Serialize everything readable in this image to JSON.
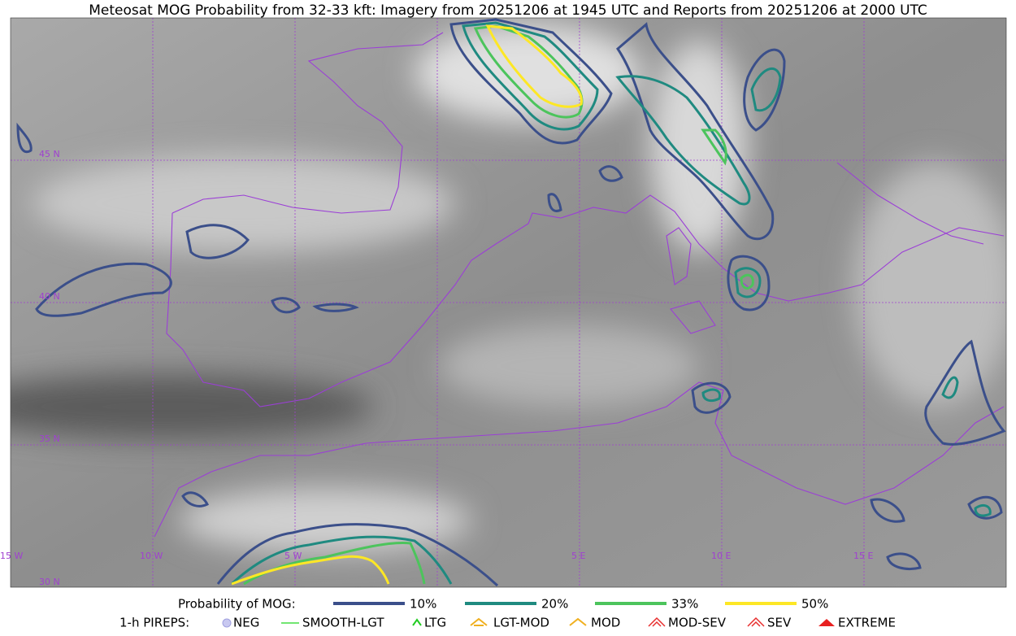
{
  "title": "Meteosat MOG Probability from 32-33 kft: Imagery from 20251206 at 1945 UTC and Reports from 20251206 at 2000 UTC",
  "map": {
    "lat_labels": [
      "45 N",
      "40 N",
      "35 N",
      "30 N"
    ],
    "lon_labels": [
      "15 W",
      "10 W",
      "5 W",
      "5 E",
      "10 E",
      "15 E"
    ]
  },
  "legend": {
    "probability": {
      "label": "Probability of MOG:",
      "levels": [
        {
          "label": "10%",
          "color": "#3b4f8a"
        },
        {
          "label": "20%",
          "color": "#1f8a80"
        },
        {
          "label": "33%",
          "color": "#4cc45c"
        },
        {
          "label": "50%",
          "color": "#fde725"
        }
      ]
    },
    "pireps": {
      "label": "1-h PIREPS:",
      "items": [
        "NEG",
        "SMOOTH-LGT",
        "LTG",
        "LGT-MOD",
        "MOD",
        "MOD-SEV",
        "SEV",
        "EXTREME"
      ]
    }
  }
}
